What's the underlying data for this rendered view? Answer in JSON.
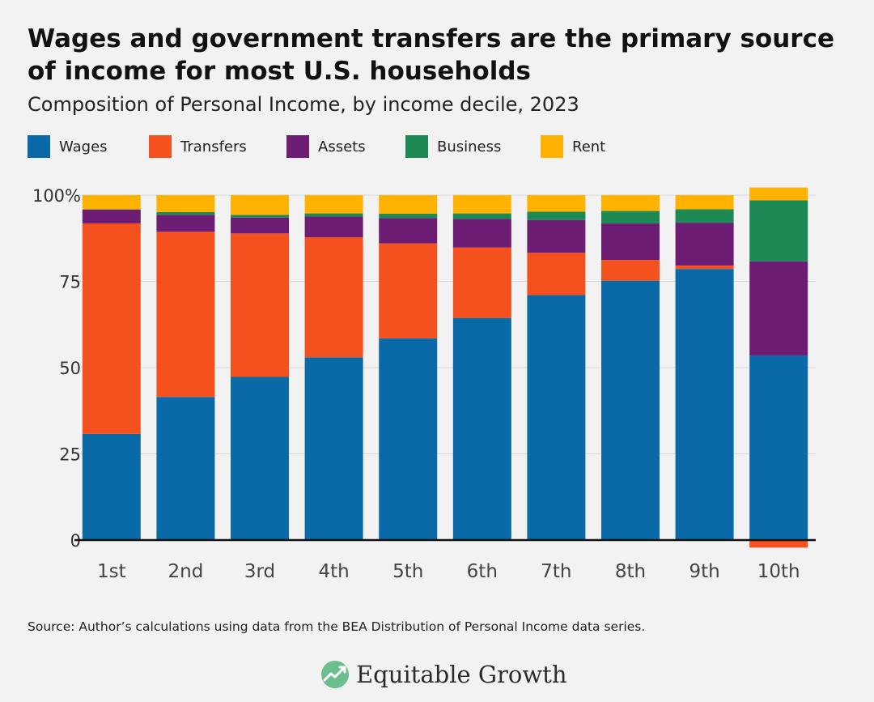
{
  "title": "Wages and government transfers are the primary source of income for most U.S. households",
  "subtitle": "Composition of Personal Income, by income decile, 2023",
  "source": "Source: Author’s calculations using data from the BEA Distribution of Personal Income data series.",
  "brand": "Equitable Growth",
  "colors": {
    "Wages": "#0a6aa8",
    "Transfers": "#f4511e",
    "Assets": "#6d1d73",
    "Business": "#1d8a55",
    "Rent": "#ffb300",
    "background": "#f2f2f2",
    "grid": "#d9d9d9",
    "axis": "#111111"
  },
  "chart_data": {
    "type": "bar",
    "stacked": true,
    "title": "Composition of Personal Income, by income decile, 2023",
    "xlabel": "",
    "ylabel": "",
    "ylim": [
      -3,
      102
    ],
    "yticks": [
      0,
      25,
      50,
      75,
      100
    ],
    "ytick_labels": [
      "0",
      "25",
      "50",
      "75",
      "100%"
    ],
    "grid": true,
    "legend_position": "top-left",
    "categories": [
      "1st",
      "2nd",
      "3rd",
      "4th",
      "5th",
      "6th",
      "7th",
      "8th",
      "9th",
      "10th"
    ],
    "series": [
      {
        "name": "Wages",
        "values": [
          30.8,
          41.5,
          47.3,
          53.0,
          58.5,
          64.4,
          71.0,
          75.2,
          78.6,
          53.5
        ]
      },
      {
        "name": "Transfers",
        "values": [
          61.0,
          47.9,
          41.6,
          34.8,
          27.5,
          20.4,
          12.3,
          6.0,
          1.0,
          -2.2
        ]
      },
      {
        "name": "Assets",
        "values": [
          4.0,
          4.9,
          4.6,
          6.0,
          7.3,
          8.3,
          9.5,
          10.6,
          12.4,
          27.3
        ]
      },
      {
        "name": "Business",
        "values": [
          0.1,
          0.8,
          0.8,
          0.9,
          1.3,
          1.6,
          2.4,
          3.6,
          3.9,
          17.7
        ]
      },
      {
        "name": "Rent",
        "values": [
          4.1,
          4.9,
          5.7,
          5.3,
          5.4,
          5.3,
          4.8,
          4.6,
          4.1,
          3.7
        ]
      }
    ]
  }
}
